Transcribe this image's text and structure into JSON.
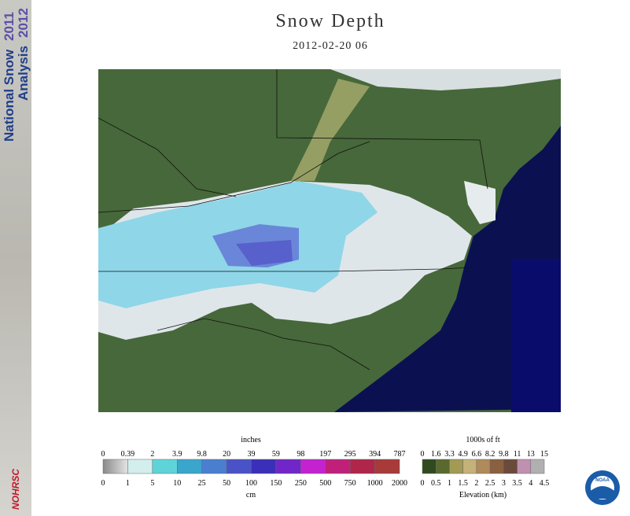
{
  "header": {
    "title": "Snow Depth",
    "subtitle": "2012-02-20 06"
  },
  "banner": {
    "line1": "National Snow",
    "year1": "2011",
    "line2": "Analysis",
    "year2": "2012",
    "logo": "NOHRSC"
  },
  "snow_legend": {
    "top_title": "inches",
    "top_labels": [
      "0",
      "0.39",
      "2",
      "3.9",
      "9.8",
      "20",
      "39",
      "59",
      "98",
      "197",
      "295",
      "394",
      "787"
    ],
    "bottom_labels": [
      "0",
      "1",
      "5",
      "10",
      "25",
      "50",
      "100",
      "150",
      "250",
      "500",
      "750",
      "1000",
      "2000"
    ],
    "bottom_title": "cm"
  },
  "elevation_legend": {
    "top_title": "1000s of ft",
    "top_labels": [
      "0",
      "1.6",
      "3.3",
      "4.9",
      "6.6",
      "8.2",
      "9.8",
      "11",
      "13",
      "15"
    ],
    "bottom_labels": [
      "0",
      "0.5",
      "1",
      "1.5",
      "2",
      "2.5",
      "3",
      "3.5",
      "4",
      "4.5"
    ],
    "bottom_title": "Elevation (km)"
  },
  "noaa_logo": "NOAA"
}
